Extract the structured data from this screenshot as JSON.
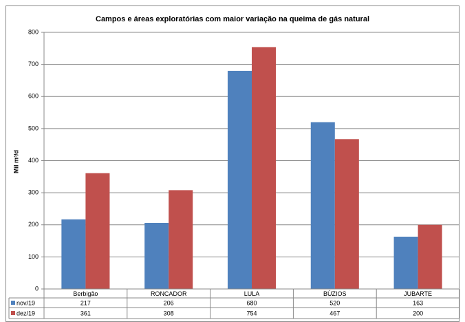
{
  "chart_data": {
    "type": "bar",
    "title": "Campos e áreas exploratórias com maior variação na queima de gás natural",
    "y_label": "Mil m³/d",
    "categories": [
      "Berbigão",
      "RONCADOR",
      "LULA",
      "BÚZIOS",
      "JUBARTE"
    ],
    "series": [
      {
        "name": "nov/19",
        "color": "#4f81bd",
        "values": [
          217,
          206,
          680,
          520,
          163
        ]
      },
      {
        "name": "dez/19",
        "color": "#c0504d",
        "values": [
          361,
          308,
          754,
          467,
          200
        ]
      }
    ],
    "ylim": [
      0,
      800
    ],
    "yticks": [
      0,
      100,
      200,
      300,
      400,
      500,
      600,
      700,
      800
    ],
    "grid": true
  }
}
